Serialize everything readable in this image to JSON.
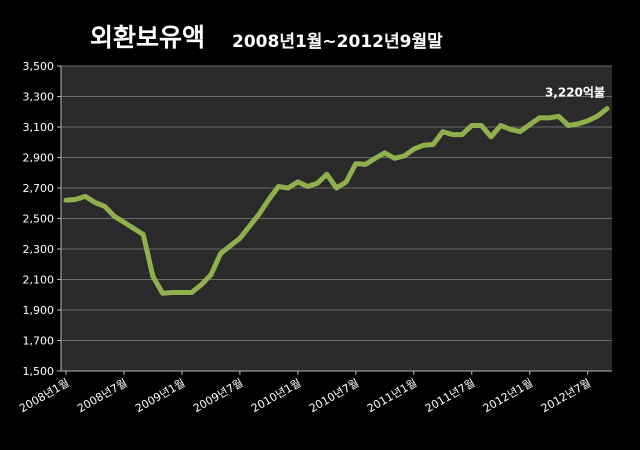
{
  "chart_data": {
    "type": "line",
    "title": "외환보유액",
    "subtitle": "2008년1월~2012년9월말",
    "xlabel": "",
    "ylabel": "",
    "ylim": [
      1500,
      3500
    ],
    "y_ticks": [
      1500,
      1700,
      1900,
      2100,
      2300,
      2500,
      2700,
      2900,
      3100,
      3300,
      3500
    ],
    "y_tick_labels": [
      "1,500",
      "1,700",
      "1,900",
      "2,100",
      "2,300",
      "2,500",
      "2,700",
      "2,900",
      "3,100",
      "3,300",
      "3,500"
    ],
    "x_tick_labels": [
      "2008년1월",
      "2008년7월",
      "2009년1월",
      "2009년7월",
      "2010년1월",
      "2010년7월",
      "2011년1월",
      "2011년7월",
      "2012년1월",
      "2012년7월"
    ],
    "x_tick_positions": [
      0,
      6,
      12,
      18,
      24,
      30,
      36,
      42,
      48,
      54
    ],
    "grid": true,
    "annotation": {
      "index": 56,
      "text": "3,220억불"
    },
    "colors": {
      "background": "#000000",
      "plot_bg": "#2a2a2a",
      "grid": "#6a6a6a",
      "line": "#8fb04c",
      "text": "#ffffff"
    },
    "series": [
      {
        "values": [
          2620,
          2625,
          2645,
          2605,
          2580,
          2515,
          2475,
          2435,
          2395,
          2120,
          2010,
          2015,
          2015,
          2015,
          2065,
          2130,
          2270,
          2320,
          2370,
          2450,
          2530,
          2625,
          2710,
          2700,
          2740,
          2710,
          2730,
          2790,
          2700,
          2740,
          2860,
          2855,
          2895,
          2930,
          2895,
          2910,
          2955,
          2980,
          2985,
          3070,
          3050,
          3050,
          3110,
          3110,
          3035,
          3110,
          3085,
          3070,
          3115,
          3160,
          3160,
          3170,
          3110,
          3120,
          3140,
          3170,
          3220
        ]
      }
    ]
  }
}
